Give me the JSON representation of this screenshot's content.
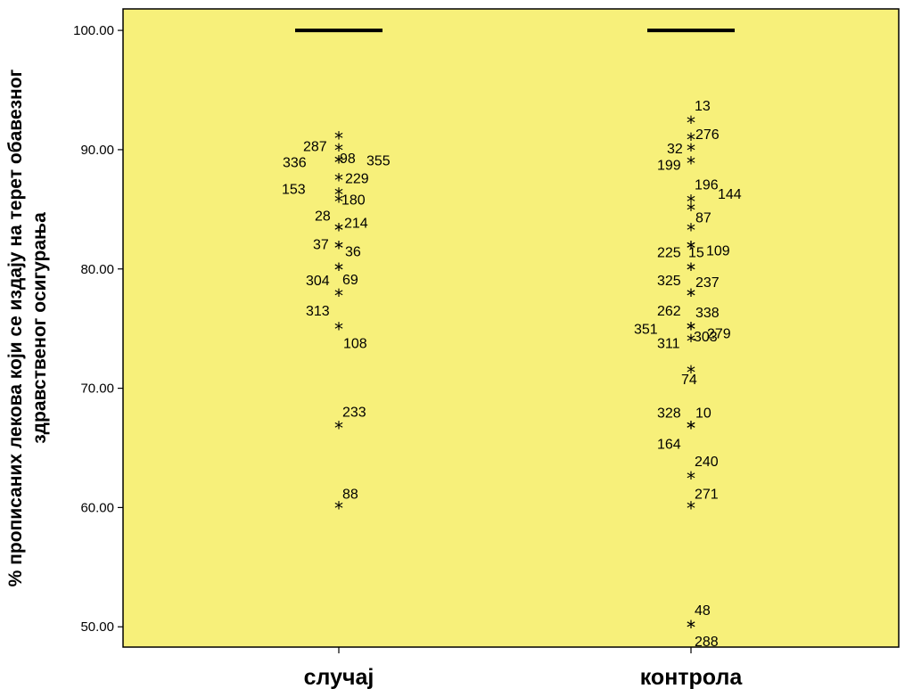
{
  "chart_data": {
    "type": "boxplot",
    "ylabel_line1": "% прописаних лекова који се издају на терет обавезног",
    "ylabel_line2": "здравственог осигурања",
    "xlabel": "",
    "ylim": [
      48.3,
      101.8
    ],
    "yticks": [
      "100.00",
      "90.00",
      "80.00",
      "70.00",
      "60.00",
      "50.00"
    ],
    "ytick_values": [
      100,
      90,
      80,
      70,
      60,
      50
    ],
    "plot_background": "#f7f07a",
    "categories": [
      {
        "name": "случај",
        "median": 100.0,
        "outliers": [
          {
            "y": 91.0,
            "label": "287"
          },
          {
            "y": 90.0,
            "label": "98"
          },
          {
            "y": 89.0,
            "label": "336"
          },
          {
            "y": 89.0,
            "label": "355"
          },
          {
            "y": 87.5,
            "label": "229"
          },
          {
            "y": 86.3,
            "label": "153"
          },
          {
            "y": 85.7,
            "label": "180"
          },
          {
            "y": 83.3,
            "label": "28"
          },
          {
            "y": 83.3,
            "label": "214"
          },
          {
            "y": 81.8,
            "label": "37"
          },
          {
            "y": 81.8,
            "label": "36"
          },
          {
            "y": 80.0,
            "label": "304"
          },
          {
            "y": 80.0,
            "label": "69"
          },
          {
            "y": 77.8,
            "label": "313"
          },
          {
            "y": 75.0,
            "label": "108"
          },
          {
            "y": 66.7,
            "label": "233"
          },
          {
            "y": 60.0,
            "label": "88"
          }
        ]
      },
      {
        "name": "контрола",
        "median": 100.0,
        "outliers": [
          {
            "y": 92.3,
            "label": "13"
          },
          {
            "y": 90.9,
            "label": "276"
          },
          {
            "y": 90.0,
            "label": "32"
          },
          {
            "y": 88.9,
            "label": "199"
          },
          {
            "y": 85.7,
            "label": "196"
          },
          {
            "y": 85.0,
            "label": "144"
          },
          {
            "y": 83.3,
            "label": "87"
          },
          {
            "y": 81.8,
            "label": "225"
          },
          {
            "y": 81.8,
            "label": "15"
          },
          {
            "y": 81.8,
            "label": "109"
          },
          {
            "y": 80.0,
            "label": "325"
          },
          {
            "y": 80.0,
            "label": "237"
          },
          {
            "y": 77.8,
            "label": "262"
          },
          {
            "y": 77.8,
            "label": "338"
          },
          {
            "y": 75.0,
            "label": "351"
          },
          {
            "y": 75.0,
            "label": "311"
          },
          {
            "y": 75.0,
            "label": "279"
          },
          {
            "y": 74.0,
            "label": "303"
          },
          {
            "y": 71.4,
            "label": "74"
          },
          {
            "y": 66.7,
            "label": "328"
          },
          {
            "y": 66.7,
            "label": "10"
          },
          {
            "y": 66.7,
            "label": "164"
          },
          {
            "y": 62.5,
            "label": "240"
          },
          {
            "y": 60.0,
            "label": "271"
          },
          {
            "y": 50.0,
            "label": "48"
          },
          {
            "y": 50.0,
            "label": "288"
          }
        ]
      }
    ]
  }
}
